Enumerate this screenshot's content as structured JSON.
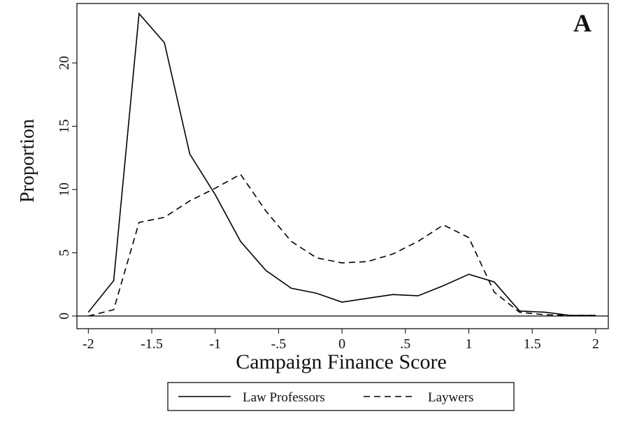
{
  "chart_data": {
    "type": "line",
    "x_label": "Campaign Finance Score",
    "y_label": "Proportion",
    "annotation": "A",
    "x": [
      -2,
      -1.8,
      -1.6,
      -1.4,
      -1.2,
      -1,
      -0.8,
      -0.6,
      -0.4,
      -0.2,
      0,
      0.2,
      0.4,
      0.6,
      0.8,
      1,
      1.2,
      1.4,
      1.6,
      1.8,
      2
    ],
    "series": [
      {
        "name": "Law Professors",
        "color": "#000000",
        "dash": "solid",
        "values": [
          0.3,
          2.8,
          23.9,
          21.6,
          12.8,
          9.6,
          5.9,
          3.6,
          2.2,
          1.8,
          1.1,
          1.4,
          1.7,
          1.6,
          2.4,
          3.3,
          2.7,
          0.4,
          0.3,
          0.05,
          0.05
        ]
      },
      {
        "name": "Laywers",
        "color": "#000000",
        "dash": "dashed",
        "values": [
          0,
          0.5,
          7.4,
          7.8,
          9.1,
          10.1,
          11.2,
          8.3,
          5.9,
          4.6,
          4.2,
          4.3,
          4.9,
          5.9,
          7.2,
          6.2,
          1.9,
          0.3,
          0.1,
          0.05,
          0.05
        ]
      }
    ],
    "xlim": [
      -2.09,
      2.1
    ],
    "xticks": [
      -2,
      -1.5,
      -1,
      {
        "value": -0.5,
        "label": "-.5"
      },
      0,
      {
        "value": 0.5,
        "label": ".5"
      },
      1,
      1.5,
      2
    ],
    "ylim": [
      -1,
      24.7
    ],
    "yticks": [
      0,
      5,
      10,
      15,
      20
    ],
    "legend": "bottom"
  }
}
